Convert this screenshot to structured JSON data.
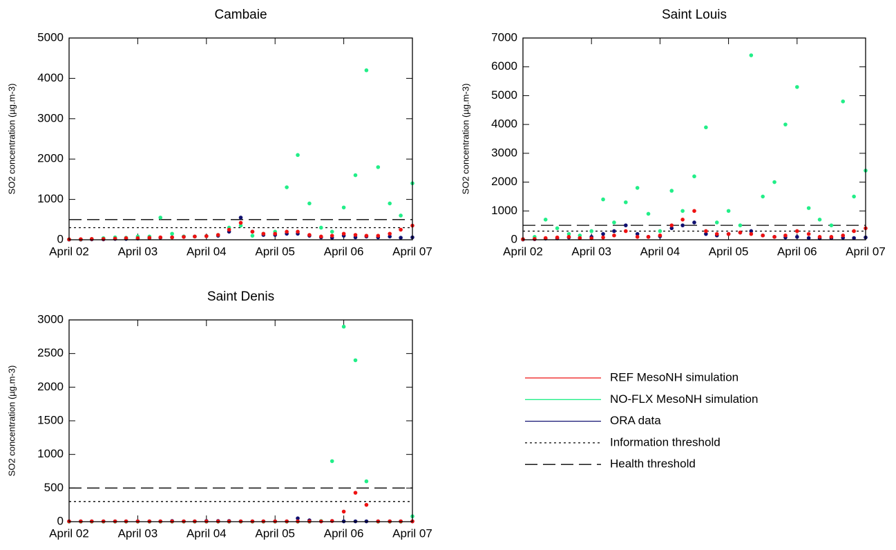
{
  "chart_data": [
    {
      "type": "scatter",
      "title": "Cambaie",
      "ylabel": "SO2 concentration (µg.m-3)",
      "x": [
        2,
        2.17,
        2.33,
        2.5,
        2.67,
        2.83,
        3,
        3.17,
        3.33,
        3.5,
        3.67,
        3.83,
        4,
        4.17,
        4.33,
        4.5,
        4.67,
        4.83,
        5,
        5.17,
        5.33,
        5.5,
        5.67,
        5.83,
        6,
        6.17,
        6.33,
        6.5,
        6.67,
        6.83,
        7
      ],
      "xlim": [
        2,
        7
      ],
      "xticks": [
        {
          "value": 2,
          "label": "April 02"
        },
        {
          "value": 3,
          "label": "April 03"
        },
        {
          "value": 4,
          "label": "April 04"
        },
        {
          "value": 5,
          "label": "April 05"
        },
        {
          "value": 6,
          "label": "April 06"
        },
        {
          "value": 7,
          "label": "April 07"
        }
      ],
      "ylim": [
        0,
        5000
      ],
      "yticks": [
        0,
        1000,
        2000,
        3000,
        4000,
        5000
      ],
      "series": [
        {
          "name": "REF MesoNH simulation",
          "color": "#ee1111",
          "values": [
            10,
            15,
            20,
            20,
            30,
            40,
            40,
            50,
            60,
            60,
            70,
            80,
            90,
            120,
            250,
            420,
            200,
            150,
            150,
            200,
            200,
            120,
            80,
            100,
            150,
            120,
            100,
            100,
            150,
            250,
            350
          ]
        },
        {
          "name": "NO-FLX MesoNH simulation",
          "color": "#22ee88",
          "values": [
            10,
            10,
            20,
            40,
            60,
            50,
            80,
            80,
            550,
            150,
            80,
            80,
            90,
            120,
            300,
            350,
            100,
            150,
            200,
            1300,
            2100,
            900,
            300,
            200,
            800,
            1600,
            4200,
            1800,
            900,
            600,
            1400
          ]
        },
        {
          "name": "ORA data",
          "color": "#101070",
          "values": [
            5,
            5,
            10,
            10,
            20,
            20,
            30,
            40,
            50,
            60,
            80,
            80,
            90,
            100,
            200,
            550,
            200,
            120,
            120,
            150,
            150,
            100,
            60,
            50,
            100,
            60,
            80,
            60,
            80,
            50,
            60
          ]
        }
      ],
      "thresholds": [
        {
          "name": "Information threshold",
          "value": 300,
          "style": "dotted"
        },
        {
          "name": "Health threshold",
          "value": 500,
          "style": "dashed"
        }
      ]
    },
    {
      "type": "scatter",
      "title": "Saint Louis",
      "ylabel": "SO2 concentration (µg.m-3)",
      "x": [
        2,
        2.17,
        2.33,
        2.5,
        2.67,
        2.83,
        3,
        3.17,
        3.33,
        3.5,
        3.67,
        3.83,
        4,
        4.17,
        4.33,
        4.5,
        4.67,
        4.83,
        5,
        5.17,
        5.33,
        5.5,
        5.67,
        5.83,
        6,
        6.17,
        6.33,
        6.5,
        6.67,
        6.83,
        7
      ],
      "xlim": [
        2,
        7
      ],
      "xticks": [
        {
          "value": 2,
          "label": "April 02"
        },
        {
          "value": 3,
          "label": "April 03"
        },
        {
          "value": 4,
          "label": "April 04"
        },
        {
          "value": 5,
          "label": "April 05"
        },
        {
          "value": 6,
          "label": "April 06"
        },
        {
          "value": 7,
          "label": "April 07"
        }
      ],
      "ylim": [
        0,
        7000
      ],
      "yticks": [
        0,
        1000,
        2000,
        3000,
        4000,
        5000,
        6000,
        7000
      ],
      "series": [
        {
          "name": "REF MesoNH simulation",
          "color": "#ee1111",
          "values": [
            20,
            30,
            60,
            80,
            100,
            60,
            50,
            80,
            150,
            300,
            100,
            100,
            150,
            500,
            700,
            1000,
            300,
            200,
            200,
            250,
            200,
            150,
            100,
            150,
            300,
            200,
            100,
            100,
            150,
            300,
            400
          ]
        },
        {
          "name": "NO-FLX MesoNH simulation",
          "color": "#22ee88",
          "values": [
            20,
            100,
            700,
            400,
            200,
            150,
            300,
            1400,
            600,
            1300,
            1800,
            900,
            300,
            1700,
            1000,
            2200,
            3900,
            600,
            1000,
            500,
            6400,
            1500,
            2000,
            4000,
            5300,
            1100,
            700,
            500,
            4800,
            1500,
            2400
          ]
        },
        {
          "name": "ORA data",
          "color": "#101070",
          "values": [
            10,
            20,
            40,
            50,
            80,
            60,
            100,
            200,
            300,
            500,
            200,
            100,
            120,
            400,
            500,
            600,
            200,
            150,
            200,
            250,
            300,
            150,
            100,
            80,
            100,
            60,
            50,
            60,
            70,
            60,
            80
          ]
        }
      ],
      "thresholds": [
        {
          "name": "Information threshold",
          "value": 300,
          "style": "dotted"
        },
        {
          "name": "Health threshold",
          "value": 500,
          "style": "dashed"
        }
      ]
    },
    {
      "type": "scatter",
      "title": "Saint Denis",
      "ylabel": "SO2 concentration (µg.m-3)",
      "x": [
        2,
        2.17,
        2.33,
        2.5,
        2.67,
        2.83,
        3,
        3.17,
        3.33,
        3.5,
        3.67,
        3.83,
        4,
        4.17,
        4.33,
        4.5,
        4.67,
        4.83,
        5,
        5.17,
        5.33,
        5.5,
        5.67,
        5.83,
        6,
        6.17,
        6.33,
        6.5,
        6.67,
        6.83,
        7
      ],
      "xlim": [
        2,
        7
      ],
      "xticks": [
        {
          "value": 2,
          "label": "April 02"
        },
        {
          "value": 3,
          "label": "April 03"
        },
        {
          "value": 4,
          "label": "April 04"
        },
        {
          "value": 5,
          "label": "April 05"
        },
        {
          "value": 6,
          "label": "April 06"
        },
        {
          "value": 7,
          "label": "April 07"
        }
      ],
      "ylim": [
        0,
        3000
      ],
      "yticks": [
        0,
        500,
        1000,
        1500,
        2000,
        2500,
        3000
      ],
      "series": [
        {
          "name": "REF MesoNH simulation",
          "color": "#ee1111",
          "values": [
            5,
            5,
            5,
            5,
            5,
            5,
            5,
            5,
            5,
            5,
            5,
            5,
            5,
            5,
            5,
            5,
            5,
            5,
            5,
            5,
            5,
            5,
            5,
            10,
            150,
            430,
            250,
            5,
            5,
            5,
            5
          ]
        },
        {
          "name": "NO-FLX MesoNH simulation",
          "color": "#22ee88",
          "values": [
            0,
            0,
            0,
            0,
            0,
            0,
            0,
            0,
            0,
            0,
            0,
            0,
            0,
            0,
            0,
            0,
            0,
            0,
            0,
            0,
            0,
            0,
            10,
            900,
            2900,
            2400,
            600,
            0,
            0,
            0,
            80
          ]
        },
        {
          "name": "ORA data",
          "color": "#101070",
          "values": [
            5,
            5,
            5,
            5,
            5,
            5,
            5,
            5,
            5,
            10,
            5,
            5,
            10,
            10,
            10,
            5,
            5,
            5,
            5,
            5,
            50,
            20,
            5,
            10,
            5,
            5,
            5,
            5,
            5,
            5,
            5
          ]
        }
      ],
      "thresholds": [
        {
          "name": "Information threshold",
          "value": 300,
          "style": "dotted"
        },
        {
          "name": "Health threshold",
          "value": 500,
          "style": "dashed"
        }
      ]
    }
  ]
}
